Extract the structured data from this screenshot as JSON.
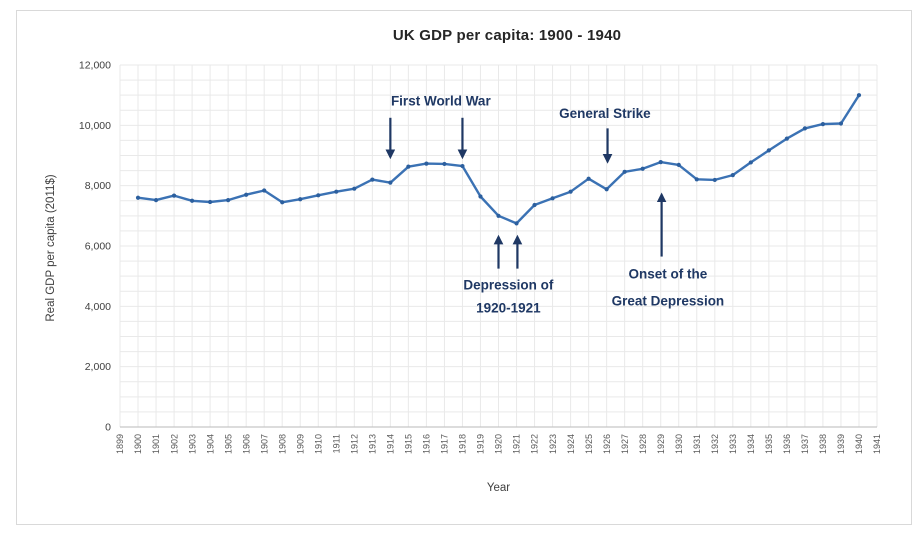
{
  "frame": {
    "border_color": "#d9d9d9",
    "background": "#ffffff"
  },
  "colors": {
    "line": "#3b72b4",
    "marker": "#2c5f9e",
    "grid": "#e9e9e9",
    "axis_line": "#c6c6c6",
    "x_tick_text": "#595959",
    "y_tick_text": "#404040",
    "title_text": "#262626",
    "axis_title_text": "#404040",
    "annotation": "#1f3864"
  },
  "chart_data": {
    "type": "line",
    "title": "UK GDP per capita: 1900 - 1940",
    "xlabel": "Year",
    "ylabel": "Real GDP per capita (2011$)",
    "grid": "on",
    "legend": "none",
    "x_axis": {
      "first_label": 1899,
      "last_label": 1941,
      "label_step": 1,
      "labels_rotated_deg": 90
    },
    "y_axis": {
      "min": 0,
      "max": 12000,
      "major_tick": 2000,
      "minor_gridline": 500,
      "tick_labels": [
        "0",
        "2,000",
        "4,000",
        "6,000",
        "8,000",
        "10,000",
        "12,000"
      ]
    },
    "series": [
      {
        "name": "Real GDP per capita (2011$)",
        "x": [
          1900,
          1901,
          1902,
          1903,
          1904,
          1905,
          1906,
          1907,
          1908,
          1909,
          1910,
          1911,
          1912,
          1913,
          1914,
          1915,
          1916,
          1917,
          1918,
          1919,
          1920,
          1921,
          1922,
          1923,
          1924,
          1925,
          1926,
          1927,
          1928,
          1929,
          1930,
          1931,
          1932,
          1933,
          1934,
          1935,
          1936,
          1937,
          1938,
          1939,
          1940
        ],
        "values": [
          7600,
          7520,
          7670,
          7500,
          7460,
          7520,
          7700,
          7840,
          7450,
          7550,
          7680,
          7800,
          7900,
          8200,
          8100,
          8630,
          8730,
          8720,
          8650,
          7640,
          7000,
          6750,
          7360,
          7580,
          7800,
          8230,
          7880,
          8460,
          8560,
          8780,
          8690,
          8210,
          8190,
          8350,
          8770,
          9170,
          9560,
          9900,
          10040,
          10060,
          11000
        ]
      }
    ],
    "annotations": [
      {
        "id": "first-world-war",
        "lines": [
          "First World War"
        ],
        "line_height": 0,
        "label": {
          "year": 1916.8,
          "value": 10800
        },
        "arrows": [
          {
            "year": 1914.0,
            "from_value": 10250,
            "to_value": 8950,
            "direction": "down"
          },
          {
            "year": 1918.0,
            "from_value": 10250,
            "to_value": 8950,
            "direction": "down"
          }
        ]
      },
      {
        "id": "general-strike",
        "lines": [
          "General Strike"
        ],
        "line_height": 0,
        "label": {
          "year": 1925.9,
          "value": 10400
        },
        "arrows": [
          {
            "year": 1926.05,
            "from_value": 9900,
            "to_value": 8800,
            "direction": "down"
          }
        ]
      },
      {
        "id": "depression-1920-1921",
        "lines": [
          "Depression of",
          "1920-1921"
        ],
        "line_height": 23,
        "label": {
          "year": 1920.55,
          "value": 4330
        },
        "arrows": [
          {
            "year": 1920.0,
            "from_value": 5250,
            "to_value": 6300,
            "direction": "up"
          },
          {
            "year": 1921.05,
            "from_value": 5250,
            "to_value": 6300,
            "direction": "up"
          }
        ]
      },
      {
        "id": "onset-great-depression",
        "lines": [
          "Onset of the",
          "Great Depression"
        ],
        "line_height": 27,
        "label": {
          "year": 1929.4,
          "value": 4620
        },
        "arrows": [
          {
            "year": 1929.05,
            "from_value": 5650,
            "to_value": 7700,
            "direction": "up"
          }
        ]
      }
    ]
  }
}
